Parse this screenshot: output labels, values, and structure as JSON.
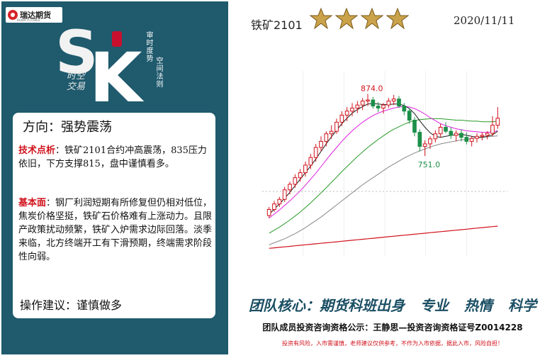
{
  "brand": {
    "logo_text": "瑞达期货",
    "logo_sub": "RUIDA FUTURES",
    "calligraphy": "时空\n交易",
    "vertical_1": "审时度势",
    "vertical_2": "空间法则",
    "accent": "#d0121b",
    "panel_color": "#1f5a6d"
  },
  "header": {
    "title": "铁矿2101",
    "stars": 4,
    "date": "2020/11/11"
  },
  "analysis": {
    "direction": "方向：强势震荡",
    "tech_label": "技术点析",
    "tech_text": "：铁矿2101合约冲高震荡，835压力依旧，下方支撑815，盘中谨慎看多。",
    "fund_label": "基本面",
    "fund_text": "：钢厂利润短期有所修复但仍相对低位，焦炭价格坚挺，铁矿石价格难有上涨动力。且限产政策扰动频繁，铁矿入炉需求边际回落。淡季来临，北方终端开工有下滑预期，终端需求阶段性向弱。",
    "suggestion": "操作建议：谨慎做多"
  },
  "footer": {
    "motto": [
      "团队核心：期货科班出身",
      "专业",
      "热情",
      "科学"
    ],
    "cert": "团队成员投资咨询资格公示：王静思—投资咨询资格证号Z0014228",
    "risk": "投资有风险，入市需谨慎，老师建议仅供参考，不作为入市依据，据此入市，风险自担！"
  },
  "chart_data": {
    "type": "line",
    "annotations": [
      {
        "text": "874.0",
        "value": 874.0
      },
      {
        "text": "751.0",
        "value": 751.0
      }
    ],
    "ylim": [
      560,
      900
    ],
    "ohlc": [
      [
        633,
        650,
        628,
        645
      ],
      [
        645,
        662,
        640,
        656
      ],
      [
        656,
        670,
        650,
        665
      ],
      [
        665,
        690,
        660,
        684
      ],
      [
        684,
        700,
        675,
        695
      ],
      [
        695,
        715,
        688,
        708
      ],
      [
        708,
        725,
        700,
        718
      ],
      [
        718,
        740,
        710,
        733
      ],
      [
        733,
        755,
        725,
        748
      ],
      [
        748,
        775,
        740,
        768
      ],
      [
        768,
        790,
        760,
        780
      ],
      [
        780,
        800,
        770,
        795
      ],
      [
        795,
        812,
        785,
        800
      ],
      [
        800,
        825,
        795,
        818
      ],
      [
        818,
        840,
        810,
        832
      ],
      [
        832,
        848,
        820,
        840
      ],
      [
        840,
        856,
        830,
        846
      ],
      [
        846,
        860,
        836,
        852
      ],
      [
        852,
        866,
        842,
        860
      ],
      [
        860,
        874,
        850,
        862
      ],
      [
        862,
        868,
        845,
        850
      ],
      [
        850,
        858,
        838,
        846
      ],
      [
        846,
        856,
        835,
        852
      ],
      [
        852,
        866,
        846,
        860
      ],
      [
        860,
        872,
        852,
        864
      ],
      [
        864,
        870,
        846,
        850
      ],
      [
        850,
        856,
        832,
        840
      ],
      [
        840,
        846,
        815,
        822
      ],
      [
        822,
        828,
        790,
        798
      ],
      [
        798,
        804,
        760,
        770
      ],
      [
        770,
        782,
        751,
        775
      ],
      [
        775,
        790,
        765,
        785
      ],
      [
        785,
        802,
        778,
        795
      ],
      [
        795,
        815,
        788,
        808
      ],
      [
        808,
        818,
        796,
        800
      ],
      [
        800,
        808,
        785,
        792
      ],
      [
        792,
        802,
        780,
        796
      ],
      [
        796,
        804,
        780,
        788
      ],
      [
        788,
        798,
        774,
        780
      ],
      [
        780,
        790,
        770,
        786
      ],
      [
        786,
        796,
        778,
        790
      ],
      [
        790,
        798,
        782,
        792
      ],
      [
        792,
        800,
        784,
        796
      ],
      [
        796,
        830,
        790,
        812
      ],
      [
        812,
        848,
        805,
        826
      ]
    ],
    "ma_fast": [
      635,
      646,
      656,
      667,
      679,
      692,
      705,
      718,
      731,
      745,
      760,
      775,
      789,
      802,
      815,
      826,
      836,
      843,
      849,
      854,
      855,
      854,
      853,
      853,
      854,
      854,
      851,
      845,
      835,
      821,
      808,
      797,
      790,
      788,
      790,
      792,
      793,
      794,
      792,
      790,
      788,
      788,
      790,
      793,
      800
    ],
    "ma_mid": [
      628,
      636,
      644,
      653,
      662,
      672,
      682,
      693,
      705,
      717,
      730,
      743,
      756,
      768,
      780,
      791,
      801,
      810,
      818,
      825,
      831,
      836,
      840,
      843,
      846,
      848,
      849,
      848,
      845,
      840,
      834,
      827,
      821,
      815,
      811,
      808,
      805,
      803,
      801,
      800,
      799,
      798,
      798,
      799,
      801
    ],
    "ma_slow": [
      598,
      604,
      610,
      617,
      624,
      632,
      640,
      649,
      658,
      668,
      678,
      688,
      699,
      709,
      720,
      730,
      740,
      750,
      759,
      768,
      776,
      784,
      791,
      798,
      804,
      809,
      814,
      818,
      821,
      823,
      824,
      825,
      825,
      825,
      824,
      823,
      822,
      822,
      821,
      820,
      820,
      819,
      819,
      819,
      820
    ],
    "ma_long": [
      575,
      579,
      583,
      587,
      592,
      597,
      603,
      609,
      616,
      623,
      630,
      638,
      646,
      654,
      662,
      670,
      678,
      686,
      694,
      701,
      708,
      715,
      722,
      729,
      735,
      741,
      747,
      752,
      757,
      761,
      765,
      769,
      772,
      775,
      777,
      779,
      781,
      783,
      784,
      786,
      787,
      788,
      789,
      790,
      791
    ],
    "ma_year": [
      568,
      569,
      570,
      571,
      572,
      573,
      574,
      575,
      576,
      577,
      578,
      579,
      580,
      581,
      582,
      583,
      584,
      585,
      586,
      587,
      588,
      589,
      590,
      591,
      592,
      593,
      594,
      595,
      596,
      597,
      598,
      599,
      600,
      601,
      602,
      603,
      604,
      605,
      606,
      607,
      608,
      609,
      610,
      611,
      612
    ],
    "colors": {
      "up": "#d0121b",
      "down": "#1d8f4a",
      "ma_fast": "#1a1a1a",
      "ma_mid": "#e020e0",
      "ma_slow": "#2a9a2a",
      "ma_long": "#888888",
      "ma_year": "#d0121b"
    }
  }
}
